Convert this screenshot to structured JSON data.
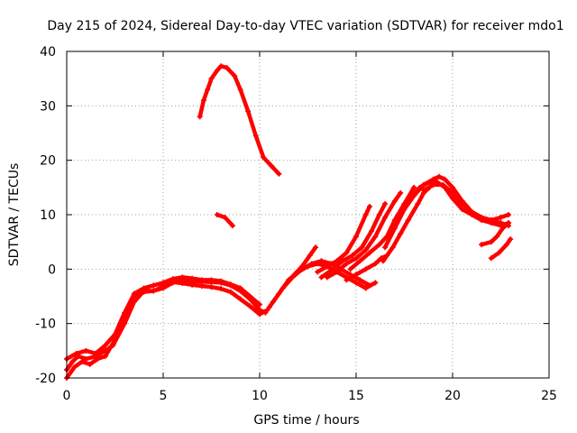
{
  "chart_data": {
    "type": "scatter",
    "title": "Day 215 of 2024, Sidereal Day-to-day VTEC variation (SDTVAR) for receiver mdo1",
    "xlabel": "GPS time / hours",
    "ylabel": "SDTVAR / TECUs",
    "xlim": [
      0,
      25
    ],
    "ylim": [
      -20,
      40
    ],
    "xticks": [
      0,
      5,
      10,
      15,
      20,
      25
    ],
    "yticks": [
      -20,
      -10,
      0,
      10,
      20,
      30,
      40
    ],
    "grid": true,
    "legend": "none",
    "series_color": "#ff0000",
    "series": [
      {
        "name": "track-1",
        "points": [
          [
            0.0,
            -18.5
          ],
          [
            0.3,
            -17
          ],
          [
            0.6,
            -16
          ],
          [
            1.0,
            -16.5
          ],
          [
            1.5,
            -16
          ],
          [
            2.0,
            -15
          ],
          [
            2.4,
            -14
          ],
          [
            3.0,
            -10
          ],
          [
            3.5,
            -6
          ],
          [
            4.0,
            -4
          ],
          [
            4.5,
            -4
          ],
          [
            5.0,
            -3.5
          ],
          [
            5.5,
            -2.5
          ],
          [
            6.0,
            -2
          ],
          [
            6.5,
            -2.2
          ],
          [
            7.0,
            -2.3
          ],
          [
            7.5,
            -2.4
          ],
          [
            8.0,
            -2.5
          ],
          [
            8.5,
            -3
          ],
          [
            9.0,
            -4
          ],
          [
            9.5,
            -5.5
          ],
          [
            10.0,
            -7.5
          ],
          [
            10.3,
            -8.0
          ]
        ]
      },
      {
        "name": "track-2",
        "points": [
          [
            0.0,
            -16.5
          ],
          [
            0.5,
            -15.5
          ],
          [
            1.0,
            -15
          ],
          [
            1.5,
            -15.5
          ],
          [
            2.0,
            -14
          ],
          [
            2.5,
            -12
          ],
          [
            3.0,
            -8
          ],
          [
            3.5,
            -4.5
          ],
          [
            4.0,
            -3.5
          ],
          [
            4.5,
            -3
          ],
          [
            5.0,
            -2.5
          ],
          [
            5.5,
            -1.8
          ],
          [
            6.0,
            -1.5
          ],
          [
            6.5,
            -1.7
          ],
          [
            7.0,
            -2
          ],
          [
            7.5,
            -2
          ],
          [
            8.0,
            -2.2
          ],
          [
            8.5,
            -2.8
          ],
          [
            9.0,
            -3.5
          ],
          [
            9.5,
            -5
          ],
          [
            10.0,
            -6.5
          ]
        ]
      },
      {
        "name": "track-3",
        "points": [
          [
            0.0,
            -20
          ],
          [
            0.4,
            -18
          ],
          [
            0.8,
            -17
          ],
          [
            1.2,
            -17.5
          ],
          [
            1.6,
            -16.5
          ],
          [
            2.0,
            -16
          ],
          [
            2.5,
            -13
          ],
          [
            3.0,
            -9.5
          ],
          [
            3.5,
            -5
          ],
          [
            4.0,
            -4.2
          ],
          [
            4.5,
            -4
          ],
          [
            5.0,
            -3.2
          ],
          [
            5.5,
            -2.4
          ],
          [
            6.0,
            -2.6
          ],
          [
            6.5,
            -2.9
          ],
          [
            7.0,
            -3.1
          ],
          [
            7.5,
            -3.3
          ],
          [
            8.0,
            -3.6
          ],
          [
            8.5,
            -4.2
          ],
          [
            9.0,
            -5.5
          ],
          [
            9.5,
            -6.8
          ],
          [
            10.0,
            -8.3
          ],
          [
            10.4,
            -7.5
          ]
        ]
      },
      {
        "name": "track-4",
        "points": [
          [
            10.5,
            -7
          ],
          [
            11.0,
            -4.5
          ],
          [
            11.5,
            -2
          ],
          [
            12.0,
            -0.5
          ],
          [
            12.5,
            0.5
          ],
          [
            13.0,
            1
          ],
          [
            13.5,
            0.5
          ],
          [
            14.0,
            -0.5
          ],
          [
            14.5,
            -1.5
          ],
          [
            15.0,
            -2.5
          ],
          [
            15.5,
            -3.5
          ],
          [
            16.0,
            -2.5
          ]
        ]
      },
      {
        "name": "track-5",
        "points": [
          [
            10.7,
            -6
          ],
          [
            11.2,
            -3.5
          ],
          [
            11.7,
            -1.5
          ],
          [
            12.2,
            0
          ],
          [
            12.7,
            1
          ],
          [
            13.2,
            1.5
          ],
          [
            13.7,
            1
          ],
          [
            14.2,
            0
          ],
          [
            14.7,
            -1
          ],
          [
            15.2,
            -2
          ],
          [
            15.7,
            -3
          ]
        ]
      },
      {
        "name": "track-6",
        "points": [
          [
            11.8,
            -1
          ],
          [
            12.2,
            0.5
          ],
          [
            12.6,
            2.5
          ],
          [
            12.9,
            4
          ]
        ]
      },
      {
        "name": "track-7",
        "points": [
          [
            13.0,
            -0.5
          ],
          [
            13.5,
            0.5
          ],
          [
            14.0,
            1.5
          ],
          [
            14.5,
            3
          ],
          [
            15.0,
            6
          ],
          [
            15.5,
            10
          ],
          [
            15.7,
            11.5
          ]
        ]
      },
      {
        "name": "track-8",
        "points": [
          [
            13.2,
            -1.5
          ],
          [
            13.8,
            0
          ],
          [
            14.3,
            1.5
          ],
          [
            14.8,
            2.5
          ],
          [
            15.3,
            4
          ],
          [
            15.8,
            7
          ],
          [
            16.2,
            10
          ],
          [
            16.5,
            12
          ]
        ]
      },
      {
        "name": "track-9",
        "points": [
          [
            13.5,
            -1.5
          ],
          [
            14.0,
            -0.5
          ],
          [
            14.5,
            1
          ],
          [
            15.0,
            2
          ],
          [
            15.5,
            3.5
          ],
          [
            16.0,
            6
          ],
          [
            16.5,
            9.5
          ],
          [
            17.0,
            12.5
          ],
          [
            17.3,
            14
          ]
        ]
      },
      {
        "name": "track-10",
        "points": [
          [
            14.7,
            0
          ],
          [
            15.2,
            1.5
          ],
          [
            15.7,
            3
          ],
          [
            16.2,
            4.5
          ],
          [
            16.6,
            6
          ],
          [
            17.0,
            9
          ],
          [
            17.5,
            12
          ],
          [
            18.0,
            15
          ]
        ]
      },
      {
        "name": "track-11",
        "points": [
          [
            14.5,
            -2
          ],
          [
            15.0,
            -1
          ],
          [
            15.5,
            0
          ],
          [
            16.0,
            1
          ],
          [
            16.3,
            2
          ],
          [
            16.6,
            2.5
          ]
        ]
      },
      {
        "name": "track-12",
        "points": [
          [
            16.4,
            1.5
          ],
          [
            16.9,
            4
          ],
          [
            17.3,
            6.5
          ],
          [
            17.7,
            9
          ],
          [
            18.2,
            12
          ],
          [
            18.5,
            14
          ],
          [
            18.8,
            15
          ]
        ]
      },
      {
        "name": "track-13",
        "points": [
          [
            16.5,
            4
          ],
          [
            17.0,
            7.5
          ],
          [
            17.5,
            11
          ],
          [
            18.0,
            13.5
          ],
          [
            18.5,
            15.5
          ],
          [
            19.0,
            16.5
          ],
          [
            19.3,
            17
          ],
          [
            19.6,
            16.5
          ],
          [
            20.0,
            15
          ],
          [
            20.5,
            12.5
          ],
          [
            21.0,
            10.5
          ],
          [
            21.5,
            9.5
          ],
          [
            22.0,
            9
          ],
          [
            22.5,
            9.5
          ],
          [
            22.9,
            10
          ]
        ]
      },
      {
        "name": "track-14",
        "points": [
          [
            17.8,
            13
          ],
          [
            18.3,
            15
          ],
          [
            18.8,
            16
          ],
          [
            19.2,
            16
          ],
          [
            19.6,
            15
          ],
          [
            20.0,
            13
          ],
          [
            20.5,
            11
          ],
          [
            21.0,
            10
          ],
          [
            21.5,
            9
          ],
          [
            22.0,
            8.5
          ],
          [
            22.5,
            8
          ],
          [
            22.9,
            8.5
          ]
        ]
      },
      {
        "name": "track-15",
        "points": [
          [
            18.5,
            14.5
          ],
          [
            19.0,
            15.5
          ],
          [
            19.5,
            15.5
          ],
          [
            20.0,
            14
          ],
          [
            20.5,
            12
          ],
          [
            21.0,
            10.5
          ],
          [
            21.5,
            9.5
          ],
          [
            22.0,
            9
          ],
          [
            22.5,
            8.5
          ],
          [
            22.9,
            8
          ]
        ]
      },
      {
        "name": "track-16",
        "points": [
          [
            21.5,
            4.5
          ],
          [
            22.0,
            5
          ],
          [
            22.3,
            6
          ],
          [
            22.6,
            7.5
          ],
          [
            22.9,
            8.5
          ]
        ]
      },
      {
        "name": "track-17",
        "points": [
          [
            22.0,
            2
          ],
          [
            22.4,
            3
          ],
          [
            22.8,
            4.5
          ],
          [
            23.0,
            5.5
          ]
        ]
      },
      {
        "name": "track-18",
        "points": [
          [
            6.9,
            28
          ],
          [
            7.1,
            31
          ],
          [
            7.3,
            33
          ],
          [
            7.5,
            35
          ],
          [
            7.8,
            36.5
          ],
          [
            8.0,
            37.3
          ],
          [
            8.3,
            37
          ],
          [
            8.7,
            35.5
          ],
          [
            9.0,
            33
          ],
          [
            9.4,
            29
          ],
          [
            9.8,
            24.5
          ],
          [
            10.2,
            20.5
          ],
          [
            10.6,
            19
          ],
          [
            11.0,
            17.5
          ]
        ]
      },
      {
        "name": "track-19",
        "points": [
          [
            7.8,
            10
          ],
          [
            8.2,
            9.5
          ],
          [
            8.6,
            8
          ]
        ]
      }
    ]
  }
}
